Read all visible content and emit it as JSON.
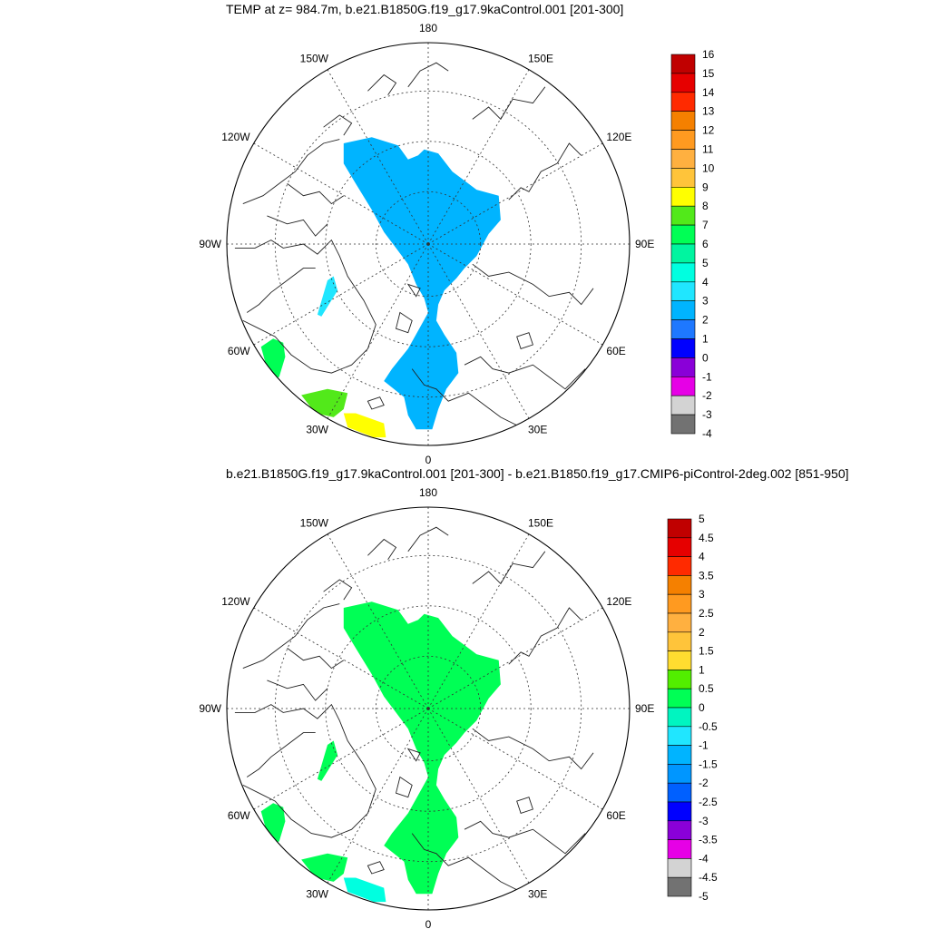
{
  "panels": [
    {
      "title": "TEMP at z= 984.7m, b.e21.B1850G.f19_g17.9kaControl.001 [201-300]",
      "longitude_labels": [
        "180",
        "150E",
        "120E",
        "90E",
        "60E",
        "30E",
        "0",
        "30W",
        "60W",
        "90W",
        "120W",
        "150W"
      ],
      "colorbar": {
        "labels": [
          "16",
          "15",
          "14",
          "13",
          "12",
          "11",
          "10",
          "9",
          "8",
          "7",
          "6",
          "5",
          "4",
          "3",
          "2",
          "1",
          "0",
          "-1",
          "-2",
          "-3",
          "-4"
        ],
        "colors": [
          "#c00000",
          "#e60000",
          "#ff2a00",
          "#f58000",
          "#ff9a20",
          "#ffb040",
          "#ffc43a",
          "#ffff00",
          "#52e91a",
          "#00ff55",
          "#00f5a0",
          "#00ffe0",
          "#20e6ff",
          "#00b4ff",
          "#1e78ff",
          "#0000ff",
          "#8a00d8",
          "#e600e6",
          "#d3d3d3",
          "#727272"
        ]
      },
      "fills": [
        {
          "region": "central-arctic-basin",
          "color": "#00b4ff"
        },
        {
          "region": "beaufort-patch",
          "color": "#20e6ff"
        },
        {
          "region": "baffin-bay-coast",
          "color": "#00ff55"
        },
        {
          "region": "greenland-sea",
          "color": "#52e91a"
        },
        {
          "region": "iceland-sea",
          "color": "#ffff00"
        }
      ]
    },
    {
      "title": "b.e21.B1850G.f19_g17.9kaControl.001 [201-300] - b.e21.B1850.f19_g17.CMIP6-piControl-2deg.002 [851-950]",
      "longitude_labels": [
        "180",
        "150E",
        "120E",
        "90E",
        "60E",
        "30E",
        "0",
        "30W",
        "60W",
        "90W",
        "120W",
        "150W"
      ],
      "colorbar": {
        "labels": [
          "5",
          "4.5",
          "4",
          "3.5",
          "3",
          "2.5",
          "2",
          "1.5",
          "1",
          "0.5",
          "0",
          "-0.5",
          "-1",
          "-1.5",
          "-2",
          "-2.5",
          "-3",
          "-3.5",
          "-4",
          "-4.5",
          "-5"
        ],
        "colors": [
          "#c00000",
          "#e60000",
          "#ff2a00",
          "#f58000",
          "#ff9a20",
          "#ffb040",
          "#ffc43a",
          "#ffdd30",
          "#52ee00",
          "#00ff55",
          "#00f5c0",
          "#20e6ff",
          "#00b4ff",
          "#0096ff",
          "#0060ff",
          "#0000ff",
          "#8a00d8",
          "#e600e6",
          "#d3d3d3",
          "#727272"
        ]
      },
      "fills": [
        {
          "region": "central-arctic-basin",
          "color": "#00ff55"
        },
        {
          "region": "beaufort-patch",
          "color": "#00ff55"
        },
        {
          "region": "baffin-bay-coast",
          "color": "#00ff55"
        },
        {
          "region": "greenland-sea",
          "color": "#00ff55"
        },
        {
          "region": "iceland-sea",
          "color": "#00ffe0"
        }
      ]
    }
  ]
}
